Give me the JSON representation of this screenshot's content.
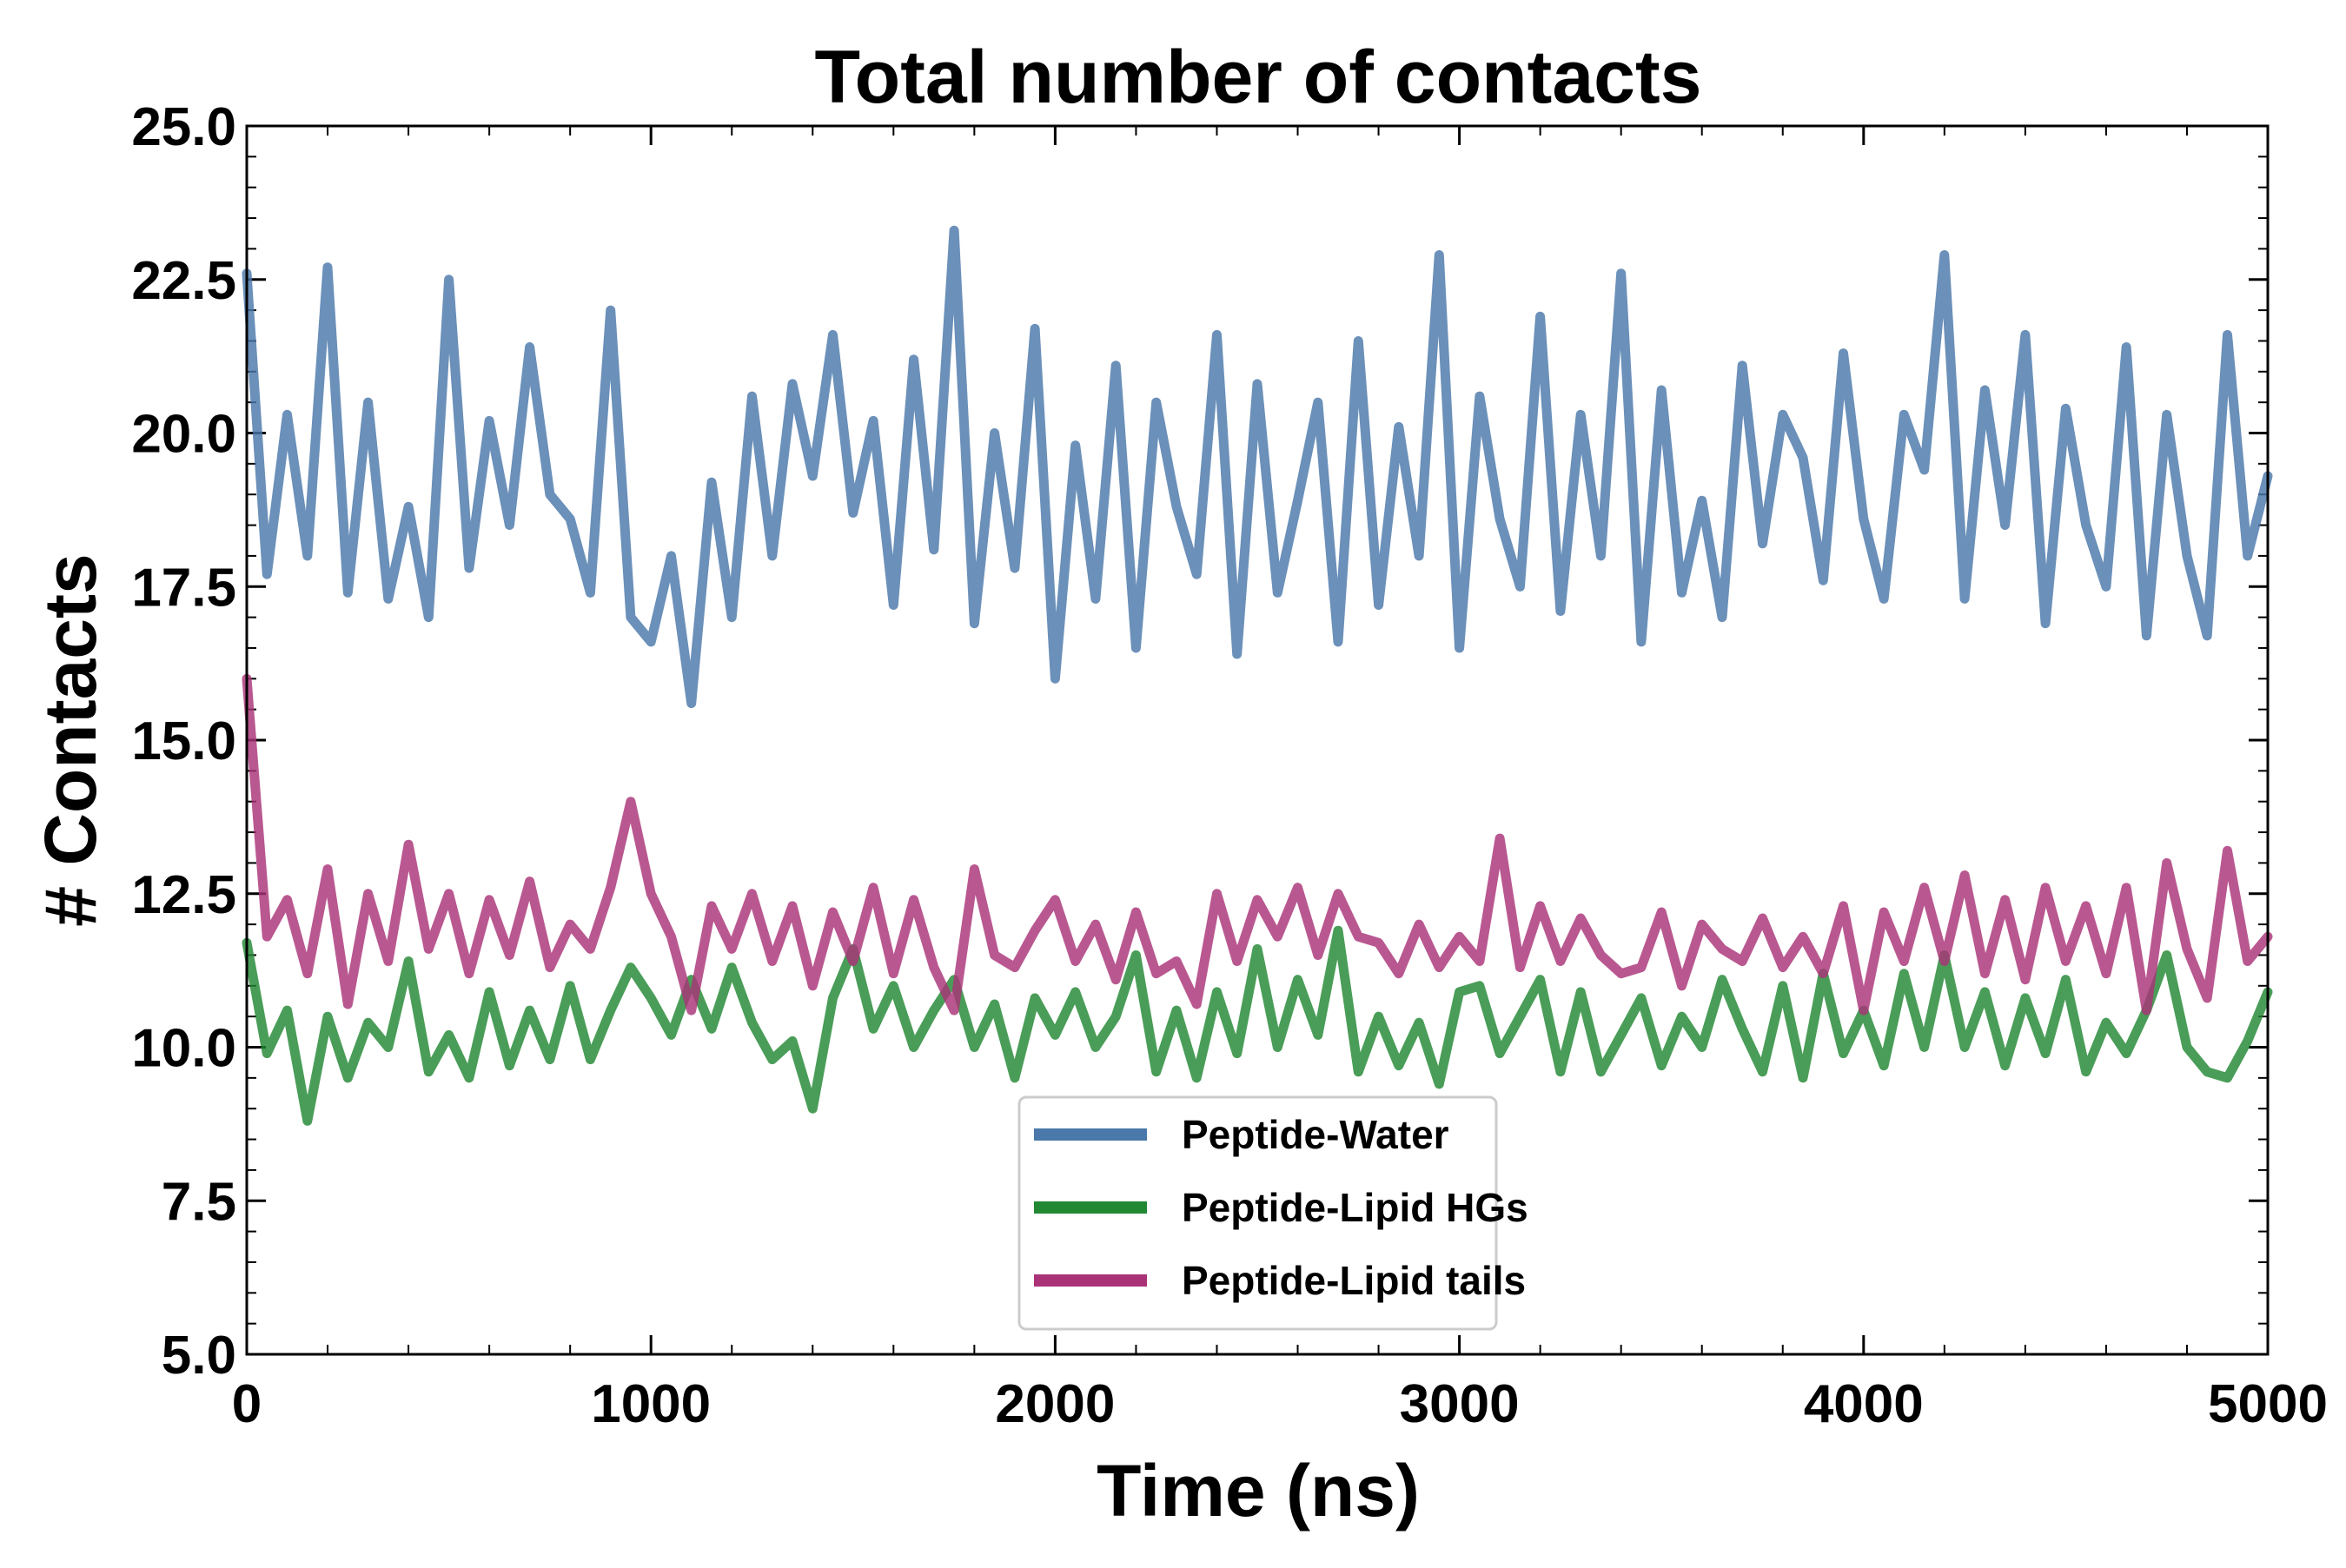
{
  "chart_data": {
    "type": "line",
    "title": "Total number of contacts",
    "xlabel": "Time (ns)",
    "ylabel": "# Contacts",
    "xlim": [
      0,
      5000
    ],
    "ylim": [
      5.0,
      25.0
    ],
    "xticks": [
      0,
      1000,
      2000,
      3000,
      4000,
      5000
    ],
    "xtick_labels": [
      "0",
      "1000",
      "2000",
      "3000",
      "4000",
      "5000"
    ],
    "yticks": [
      5.0,
      7.5,
      10.0,
      12.5,
      15.0,
      17.5,
      20.0,
      22.5,
      25.0
    ],
    "ytick_labels": [
      "5.0",
      "7.5",
      "10.0",
      "12.5",
      "15.0",
      "17.5",
      "20.0",
      "22.5",
      "25.0"
    ],
    "legend_position": "lower-center",
    "series": [
      {
        "name": "Peptide-Water",
        "color": "#4a78aa",
        "x": [
          0,
          50,
          100,
          150,
          200,
          250,
          300,
          350,
          400,
          450,
          500,
          550,
          600,
          650,
          700,
          750,
          800,
          850,
          900,
          950,
          1000,
          1050,
          1100,
          1150,
          1200,
          1250,
          1300,
          1350,
          1400,
          1450,
          1500,
          1550,
          1600,
          1650,
          1700,
          1750,
          1800,
          1850,
          1900,
          1950,
          2000,
          2050,
          2100,
          2150,
          2200,
          2250,
          2300,
          2350,
          2400,
          2450,
          2500,
          2550,
          2600,
          2650,
          2700,
          2750,
          2800,
          2850,
          2900,
          2950,
          3000,
          3050,
          3100,
          3150,
          3200,
          3250,
          3300,
          3350,
          3400,
          3450,
          3500,
          3550,
          3600,
          3650,
          3700,
          3750,
          3800,
          3850,
          3900,
          3950,
          4000,
          4050,
          4100,
          4150,
          4200,
          4250,
          4300,
          4350,
          4400,
          4450,
          4500,
          4550,
          4600,
          4650,
          4700,
          4750,
          4800,
          4850,
          4900,
          4950,
          5000
        ],
        "values": [
          22.6,
          17.7,
          20.3,
          18.0,
          22.7,
          17.4,
          20.5,
          17.3,
          18.8,
          17.0,
          22.5,
          17.8,
          20.2,
          18.5,
          21.4,
          19.0,
          18.6,
          17.4,
          22.0,
          17.0,
          16.6,
          18.0,
          15.6,
          19.2,
          17.0,
          20.6,
          18.0,
          20.8,
          19.3,
          21.6,
          18.7,
          20.2,
          17.2,
          21.2,
          18.1,
          23.3,
          16.9,
          20.0,
          17.8,
          21.7,
          16.0,
          19.8,
          17.3,
          21.1,
          16.5,
          20.5,
          18.8,
          17.7,
          21.6,
          16.4,
          20.8,
          17.4,
          18.9,
          20.5,
          16.6,
          21.5,
          17.2,
          20.1,
          18.0,
          22.9,
          16.5,
          20.6,
          18.6,
          17.5,
          21.9,
          17.1,
          20.3,
          18.0,
          22.6,
          16.6,
          20.7,
          17.4,
          18.9,
          17.0,
          21.1,
          18.2,
          20.3,
          19.6,
          17.6,
          21.3,
          18.6,
          17.3,
          20.3,
          19.4,
          22.9,
          17.3,
          20.7,
          18.5,
          21.6,
          16.9,
          20.4,
          18.5,
          17.5,
          21.4,
          16.7,
          20.3,
          18.0,
          16.7,
          21.6,
          18.0,
          19.3
        ]
      },
      {
        "name": "Peptide-Lipid HGs",
        "color": "#228833",
        "x": [
          0,
          50,
          100,
          150,
          200,
          250,
          300,
          350,
          400,
          450,
          500,
          550,
          600,
          650,
          700,
          750,
          800,
          850,
          900,
          950,
          1000,
          1050,
          1100,
          1150,
          1200,
          1250,
          1300,
          1350,
          1400,
          1450,
          1500,
          1550,
          1600,
          1650,
          1700,
          1750,
          1800,
          1850,
          1900,
          1950,
          2000,
          2050,
          2100,
          2150,
          2200,
          2250,
          2300,
          2350,
          2400,
          2450,
          2500,
          2550,
          2600,
          2650,
          2700,
          2750,
          2800,
          2850,
          2900,
          2950,
          3000,
          3050,
          3100,
          3150,
          3200,
          3250,
          3300,
          3350,
          3400,
          3450,
          3500,
          3550,
          3600,
          3650,
          3700,
          3750,
          3800,
          3850,
          3900,
          3950,
          4000,
          4050,
          4100,
          4150,
          4200,
          4250,
          4300,
          4350,
          4400,
          4450,
          4500,
          4550,
          4600,
          4650,
          4700,
          4750,
          4800,
          4850,
          4900,
          4950,
          5000
        ],
        "values": [
          11.7,
          9.9,
          10.6,
          8.8,
          10.5,
          9.5,
          10.4,
          10.0,
          11.4,
          9.6,
          10.2,
          9.5,
          10.9,
          9.7,
          10.6,
          9.8,
          11.0,
          9.8,
          10.6,
          11.3,
          10.8,
          10.2,
          11.1,
          10.3,
          11.3,
          10.4,
          9.8,
          10.1,
          9.0,
          10.8,
          11.6,
          10.3,
          11.0,
          10.0,
          10.6,
          11.1,
          10.0,
          10.7,
          9.5,
          10.8,
          10.2,
          10.9,
          10.0,
          10.5,
          11.5,
          9.6,
          10.6,
          9.5,
          10.9,
          9.9,
          11.6,
          10.0,
          11.1,
          10.2,
          11.9,
          9.6,
          10.5,
          9.7,
          10.4,
          9.4,
          10.9,
          11.0,
          9.9,
          10.5,
          11.1,
          9.6,
          10.9,
          9.6,
          10.2,
          10.8,
          9.7,
          10.5,
          10.0,
          11.1,
          10.3,
          9.6,
          11.0,
          9.5,
          11.2,
          9.9,
          10.6,
          9.7,
          11.2,
          10.0,
          11.5,
          10.0,
          10.9,
          9.7,
          10.8,
          9.9,
          11.1,
          9.6,
          10.4,
          9.9,
          10.6,
          11.5,
          10.0,
          9.6,
          9.5,
          10.1,
          10.9
        ]
      },
      {
        "name": "Peptide-Lipid tails",
        "color": "#aa3377",
        "x": [
          0,
          50,
          100,
          150,
          200,
          250,
          300,
          350,
          400,
          450,
          500,
          550,
          600,
          650,
          700,
          750,
          800,
          850,
          900,
          950,
          1000,
          1050,
          1100,
          1150,
          1200,
          1250,
          1300,
          1350,
          1400,
          1450,
          1500,
          1550,
          1600,
          1650,
          1700,
          1750,
          1800,
          1850,
          1900,
          1950,
          2000,
          2050,
          2100,
          2150,
          2200,
          2250,
          2300,
          2350,
          2400,
          2450,
          2500,
          2550,
          2600,
          2650,
          2700,
          2750,
          2800,
          2850,
          2900,
          2950,
          3000,
          3050,
          3100,
          3150,
          3200,
          3250,
          3300,
          3350,
          3400,
          3450,
          3500,
          3550,
          3600,
          3650,
          3700,
          3750,
          3800,
          3850,
          3900,
          3950,
          4000,
          4050,
          4100,
          4150,
          4200,
          4250,
          4300,
          4350,
          4400,
          4450,
          4500,
          4550,
          4600,
          4650,
          4700,
          4750,
          4800,
          4850,
          4900,
          4950,
          5000
        ],
        "values": [
          16.0,
          11.8,
          12.4,
          11.2,
          12.9,
          10.7,
          12.5,
          11.4,
          13.3,
          11.6,
          12.5,
          11.2,
          12.4,
          11.5,
          12.7,
          11.3,
          12.0,
          11.6,
          12.6,
          14.0,
          12.5,
          11.8,
          10.6,
          12.3,
          11.6,
          12.5,
          11.4,
          12.3,
          11.0,
          12.2,
          11.4,
          12.6,
          11.2,
          12.4,
          11.3,
          10.6,
          12.9,
          11.5,
          11.3,
          11.9,
          12.4,
          11.4,
          12.0,
          11.1,
          12.2,
          11.2,
          11.4,
          10.7,
          12.5,
          11.4,
          12.4,
          11.8,
          12.6,
          11.5,
          12.5,
          11.8,
          11.7,
          11.2,
          12.0,
          11.3,
          11.8,
          11.4,
          13.4,
          11.3,
          12.3,
          11.4,
          12.1,
          11.5,
          11.2,
          11.3,
          12.2,
          11.0,
          12.0,
          11.6,
          11.4,
          12.1,
          11.3,
          11.8,
          11.2,
          12.3,
          10.6,
          12.2,
          11.4,
          12.6,
          11.4,
          12.8,
          11.2,
          12.4,
          11.1,
          12.6,
          11.4,
          12.3,
          11.2,
          12.6,
          10.6,
          13.0,
          11.6,
          10.8,
          13.2,
          11.4,
          11.8
        ]
      }
    ]
  }
}
